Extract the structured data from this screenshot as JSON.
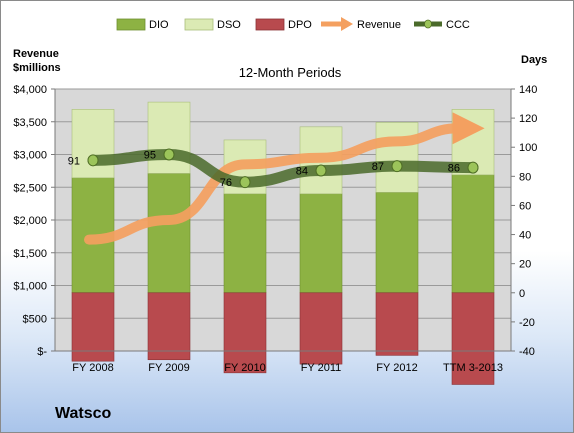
{
  "company": "Watsco",
  "chart_data": {
    "type": "bar",
    "title": "12-Month Periods",
    "y_left_label": [
      "Revenue",
      "$millions"
    ],
    "y_right_label": "Days",
    "y_left_ticks": [
      "$-",
      "$500",
      "$1,000",
      "$1,500",
      "$2,000",
      "$2,500",
      "$3,000",
      "$3,500",
      "$4,000"
    ],
    "y_left_range": [
      0,
      4000
    ],
    "y_right_ticks": [
      "-40",
      "-20",
      "0",
      "20",
      "40",
      "60",
      "80",
      "100",
      "120",
      "140"
    ],
    "y_right_range": [
      -40,
      140
    ],
    "categories": [
      "FY 2008",
      "FY 2009",
      "FY 2010",
      "FY 2011",
      "FY 2012",
      "TTM 3-2013"
    ],
    "legend": [
      "DIO",
      "DSO",
      "DPO",
      "Revenue",
      "CCC"
    ],
    "series": [
      {
        "name": "DIO",
        "axis": "days",
        "stacked": true,
        "color": "#8db243",
        "values": [
          79,
          82,
          68,
          68,
          69,
          81
        ]
      },
      {
        "name": "DSO",
        "axis": "days",
        "stacked": true,
        "color": "#dbeab4",
        "values": [
          47,
          49,
          37,
          46,
          48,
          45
        ]
      },
      {
        "name": "DPO",
        "axis": "days",
        "negative": true,
        "color": "#b84a4e",
        "values": [
          -47,
          -46,
          -55,
          -49,
          -43,
          -63
        ]
      },
      {
        "name": "Revenue",
        "axis": "revenue",
        "color": "#f4a060",
        "values": [
          1700,
          2000,
          2850,
          2950,
          3200,
          3400
        ]
      },
      {
        "name": "CCC",
        "axis": "days",
        "color": "#4a6a2a",
        "values": [
          91,
          95,
          76,
          84,
          87,
          86
        ]
      }
    ],
    "ccc_labels": [
      "91",
      "95",
      "76",
      "84",
      "87",
      "86"
    ],
    "grid": "horizontal"
  }
}
